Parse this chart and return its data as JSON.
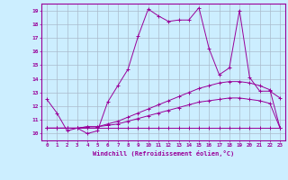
{
  "xlabel": "Windchill (Refroidissement éolien,°C)",
  "bg_color": "#cceeff",
  "line_color": "#990099",
  "grid_color": "#aabbcc",
  "x_ticks": [
    0,
    1,
    2,
    3,
    4,
    5,
    6,
    7,
    8,
    9,
    10,
    11,
    12,
    13,
    14,
    15,
    16,
    17,
    18,
    19,
    20,
    21,
    22,
    23
  ],
  "y_ticks": [
    10,
    11,
    12,
    13,
    14,
    15,
    16,
    17,
    18,
    19
  ],
  "xlim": [
    -0.5,
    23.5
  ],
  "ylim": [
    9.5,
    19.5
  ],
  "series": [
    [
      12.5,
      11.5,
      10.2,
      10.4,
      10.0,
      10.2,
      12.3,
      13.5,
      14.7,
      17.1,
      19.1,
      18.6,
      18.2,
      18.3,
      18.3,
      19.2,
      16.2,
      14.3,
      14.8,
      19.0,
      14.1,
      13.1,
      13.1,
      12.6
    ],
    [
      10.4,
      10.4,
      10.4,
      10.4,
      10.5,
      10.5,
      10.7,
      10.9,
      11.2,
      11.5,
      11.8,
      12.1,
      12.4,
      12.7,
      13.0,
      13.3,
      13.5,
      13.7,
      13.8,
      13.8,
      13.7,
      13.5,
      13.2,
      10.4
    ],
    [
      10.4,
      10.4,
      10.4,
      10.4,
      10.5,
      10.5,
      10.6,
      10.7,
      10.9,
      11.1,
      11.3,
      11.5,
      11.7,
      11.9,
      12.1,
      12.3,
      12.4,
      12.5,
      12.6,
      12.6,
      12.5,
      12.4,
      12.2,
      10.4
    ],
    [
      10.4,
      10.4,
      10.4,
      10.4,
      10.4,
      10.4,
      10.4,
      10.4,
      10.4,
      10.4,
      10.4,
      10.4,
      10.4,
      10.4,
      10.4,
      10.4,
      10.4,
      10.4,
      10.4,
      10.4,
      10.4,
      10.4,
      10.4,
      10.4
    ]
  ]
}
